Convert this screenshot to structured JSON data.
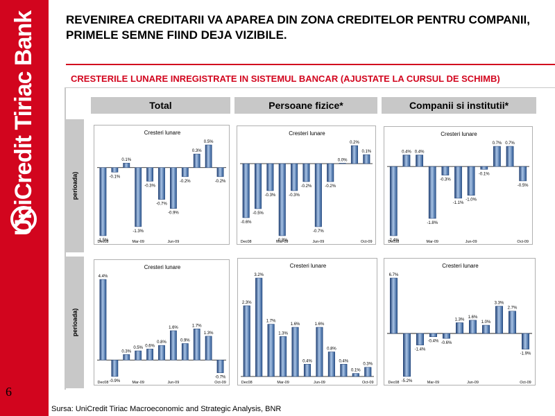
{
  "brand": {
    "name": "UniCredit Tiriac Bank",
    "color": "#d2051e"
  },
  "page_number": "6",
  "title": "REVENIREA CREDITARII VA APAREA DIN ZONA CREDITELOR PENTRU COMPANII, PRIMELE SEMNE FIIND DEJA VIZIBILE.",
  "subtitle": "CRESTERILE LUNARE INREGISTRATE IN SISTEMUL BANCAR (AJUSTATE LA CURSUL DE SCHIMB)",
  "columns": [
    "Total",
    "Persoane fizice*",
    "Companii si institutii*"
  ],
  "row_labels": [
    "perioada)",
    "perioada)"
  ],
  "source": "Sursa: UniCredit Tiriac Macroeconomic and Strategic Analysis, BNR",
  "chart_data": [
    {
      "type": "bar",
      "title": "Cresteri lunare",
      "x_ticks": [
        "Dec08",
        "Mar-09",
        "Jun-09"
      ],
      "values": [
        -1.5,
        -0.1,
        0.1,
        -1.3,
        -0.3,
        -0.7,
        -0.9,
        -0.2,
        0.3,
        0.5,
        -0.2
      ],
      "labels": [
        "-1.5%",
        "-0.1%",
        "0.1%",
        "-1.3%",
        "-0.3%",
        "-0.7%",
        "-0.9%",
        "-0.2%",
        "0.3%",
        "0.5%",
        "-0.2%"
      ]
    },
    {
      "type": "bar",
      "title": "Cresteri lunare",
      "x_ticks": [
        "Dec08",
        "Mar-09",
        "Jun-09",
        "Oct-09"
      ],
      "values": [
        -0.6,
        -0.5,
        -0.3,
        -0.8,
        -0.3,
        -0.2,
        -0.7,
        -0.2,
        0.0,
        0.2,
        0.1
      ],
      "labels": [
        "-0.6%",
        "-0.5%",
        "-0.3%",
        "-0.8%",
        "-0.3%",
        "-0.2%",
        "-0.7%",
        "-0.2%",
        "0.0%",
        "0.2%",
        "0.1%"
      ]
    },
    {
      "type": "bar",
      "title": "Cresteri lunare",
      "x_ticks": [
        "Dec08",
        "Mar-09",
        "Jun-09",
        "Oct-09"
      ],
      "values": [
        -2.4,
        0.4,
        0.4,
        -1.8,
        -0.3,
        -1.1,
        -1.0,
        -0.1,
        0.7,
        0.7,
        -0.5
      ],
      "labels": [
        "-2.4%",
        "0.4%",
        "0.4%",
        "-1.8%",
        "-0.3%",
        "-1.1%",
        "-1.0%",
        "-0.1%",
        "0.7%",
        "0.7%",
        "-0.5%"
      ]
    },
    {
      "type": "bar",
      "title": "Cresteri lunare",
      "x_ticks": [
        "Dec08",
        "Mar-09",
        "Jun-09",
        "Oct-09"
      ],
      "values": [
        4.4,
        -0.9,
        0.3,
        0.5,
        0.6,
        0.8,
        1.6,
        0.9,
        1.7,
        1.3,
        -0.7
      ],
      "labels": [
        "4.4%",
        "-0.9%",
        "0.3%",
        "0.5%",
        "0.6%",
        "0.8%",
        "1.6%",
        "0.9%",
        "1.7%",
        "1.3%",
        "-0.7%"
      ]
    },
    {
      "type": "bar",
      "title": "Cresteri lunare",
      "x_ticks": [
        "Dec08",
        "Mar-09",
        "Jun-09",
        "Oct-09"
      ],
      "values": [
        2.3,
        3.2,
        1.7,
        1.3,
        1.6,
        0.4,
        1.6,
        0.8,
        0.4,
        0.1,
        0.3
      ],
      "labels": [
        "2.3%",
        "3.2%",
        "1.7%",
        "1.3%",
        "1.6%",
        "0.4%",
        "1.6%",
        "0.8%",
        "0.4%",
        "0.1%",
        "0.3%"
      ]
    },
    {
      "type": "bar",
      "title": "Cresteri lunare",
      "x_ticks": [
        "Dec08",
        "Mar-09",
        "Jun-09",
        "Oct-09"
      ],
      "values": [
        6.7,
        -5.2,
        -1.4,
        -0.4,
        -0.6,
        1.3,
        1.6,
        1.0,
        3.3,
        2.7,
        -1.9
      ],
      "labels": [
        "6.7%",
        "-5.2%",
        "-1.4%",
        "-0.4%",
        "-0.6%",
        "1.3%",
        "1.6%",
        "1.0%",
        "3.3%",
        "2.7%",
        "-1.9%"
      ]
    }
  ]
}
